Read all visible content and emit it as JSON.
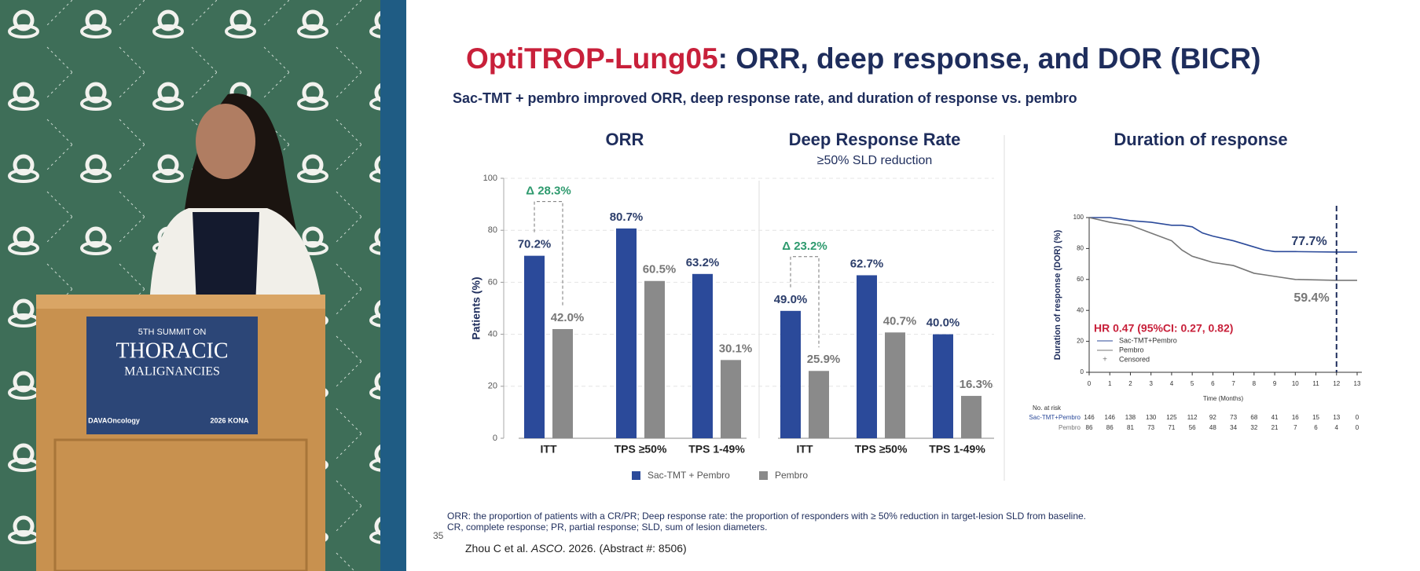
{
  "video": {
    "sign": {
      "line1": "5TH SUMMIT ON",
      "line2": "THORACIC",
      "line3": "MALIGNANCIES",
      "brand": "DAVAOncology",
      "event": "2026 KONA"
    }
  },
  "slide": {
    "title_highlight": "OptiTROP-Lung05",
    "title_rest": ": ORR, deep response, and DOR (BICR)",
    "subtitle": "Sac-TMT + pembro improved ORR, deep response rate, and duration of response vs. pembro",
    "footnotes": [
      "ORR: the proportion of patients with a CR/PR; Deep response rate: the proportion of responders with ≥ 50% reduction in target-lesion SLD from baseline.",
      "CR, complete response; PR, partial response; SLD, sum of lesion diameters."
    ],
    "page_number": "35",
    "citation": [
      "Zhou C et al. ",
      "ASCO",
      ". 2026. (Abstract #: 8506)"
    ]
  },
  "chart_data": [
    {
      "type": "bar",
      "title": "ORR",
      "ylabel": "Patients (%)",
      "categories": [
        "ITT",
        "TPS ≥50%",
        "TPS 1-49%"
      ],
      "series": [
        {
          "name": "Sac-TMT + Pembro",
          "color": "#2b4a9a",
          "values": [
            70.2,
            80.7,
            63.2
          ],
          "value_labels": [
            "70.2%",
            "80.7%",
            "63.2%"
          ]
        },
        {
          "name": "Pembro",
          "color": "#8a8a8a",
          "values": [
            42,
            60.5,
            30.1
          ],
          "value_labels": [
            "42.0%",
            "60.5%",
            "30.1%"
          ]
        }
      ],
      "annotation": "Δ 28.3%",
      "ylim": [
        0,
        100
      ],
      "yticks": [
        0,
        20,
        40,
        60,
        80,
        100
      ],
      "grid": true,
      "legend": "bottom"
    },
    {
      "type": "bar",
      "title": "Deep Response Rate",
      "subtitle": "≥50% SLD reduction",
      "categories": [
        "ITT",
        "TPS ≥50%",
        "TPS 1-49%"
      ],
      "series": [
        {
          "name": "Sac-TMT + Pembro",
          "color": "#2b4a9a",
          "values": [
            49,
            62.7,
            40
          ],
          "value_labels": [
            "49.0%",
            "62.7%",
            "40.0%"
          ]
        },
        {
          "name": "Pembro",
          "color": "#8a8a8a",
          "values": [
            25.9,
            40.7,
            16.3
          ],
          "value_labels": [
            "25.9%",
            "40.7%",
            "16.3%"
          ]
        }
      ],
      "annotation": "Δ 23.2%",
      "ylim": [
        0,
        100
      ]
    },
    {
      "type": "line",
      "title": "Duration of response",
      "ylabel": "Duration of response (DOR)  (%)",
      "xlabel": "Time (Months)",
      "x": [
        0,
        1,
        2,
        3,
        4,
        4.5,
        5,
        5.5,
        6,
        7,
        8,
        8.5,
        9,
        10,
        12,
        13
      ],
      "series": [
        {
          "name": "Sac-TMT+Pembro",
          "color": "#2b4a9a",
          "values": [
            100,
            100,
            98,
            97,
            95,
            95,
            94,
            90,
            88,
            85,
            81,
            79,
            78,
            78,
            77.7,
            77.7
          ]
        },
        {
          "name": "Pembro",
          "color": "#777777",
          "values": [
            100,
            97,
            95,
            90,
            85,
            79,
            75,
            73,
            71,
            69,
            64,
            63,
            62,
            60,
            59.4,
            59.4
          ]
        }
      ],
      "censored_label": "Censored",
      "annotations": [
        "77.7%",
        "59.4%",
        "HR 0.47 (95%CI: 0.27, 0.82)"
      ],
      "vline": 12,
      "xlim": [
        0,
        13
      ],
      "xticks": [
        0,
        1,
        2,
        3,
        4,
        5,
        6,
        7,
        8,
        9,
        10,
        11,
        12,
        13
      ],
      "ylim": [
        0,
        100
      ],
      "yticks": [
        0,
        20,
        40,
        60,
        80,
        100
      ],
      "risk_table": {
        "title": "No. at risk",
        "rows": [
          {
            "name": "Sac-TMT+Pembro",
            "values": [
              146,
              146,
              138,
              130,
              125,
              112,
              92,
              73,
              68,
              41,
              16,
              15,
              13,
              0
            ]
          },
          {
            "name": "Pembro",
            "values": [
              86,
              86,
              81,
              73,
              71,
              56,
              48,
              34,
              32,
              21,
              7,
              6,
              4,
              0
            ]
          }
        ]
      }
    }
  ]
}
